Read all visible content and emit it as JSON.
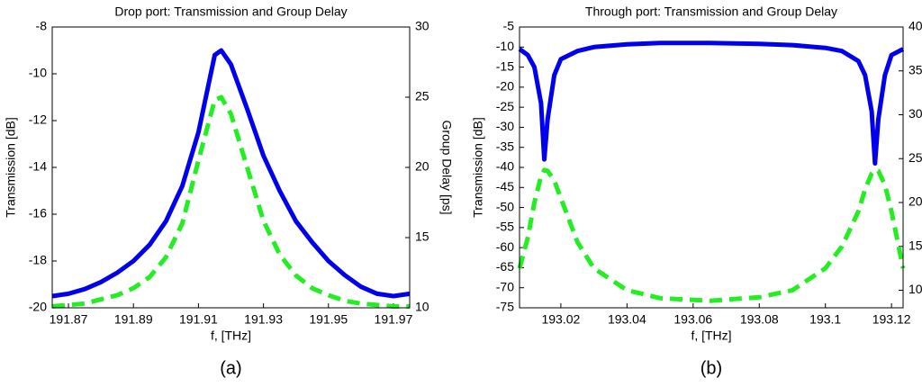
{
  "chart_data": [
    {
      "type": "line",
      "title": "Drop port: Transmission and Group Delay",
      "xlabel": "f, [THz]",
      "ylabel": "Transmission [dB]",
      "y2label": "Group Delay [ps]",
      "panel_label": "(a)",
      "x": [
        191.865,
        191.87,
        191.875,
        191.88,
        191.885,
        191.89,
        191.895,
        191.9,
        191.905,
        191.91,
        191.915,
        191.917,
        191.92,
        191.925,
        191.93,
        191.935,
        191.94,
        191.945,
        191.95,
        191.955,
        191.96,
        191.965,
        191.97,
        191.975
      ],
      "xlim": [
        191.865,
        191.975
      ],
      "xticks": [
        191.87,
        191.89,
        191.91,
        191.93,
        191.95,
        191.97
      ],
      "ylim": [
        -20,
        -8
      ],
      "yticks": [
        -20,
        -18,
        -16,
        -14,
        -12,
        -10,
        -8
      ],
      "y2lim": [
        10,
        30
      ],
      "y2ticks": [
        10,
        15,
        20,
        25,
        30
      ],
      "series": [
        {
          "color": "#0000ee",
          "style": "solid",
          "values": [
            -19.5,
            -19.4,
            -19.2,
            -18.9,
            -18.5,
            -18.0,
            -17.3,
            -16.3,
            -14.8,
            -12.5,
            -9.2,
            -9.0,
            -9.6,
            -11.5,
            -13.5,
            -15.0,
            -16.3,
            -17.2,
            -18.0,
            -18.6,
            -19.1,
            -19.4,
            -19.5,
            -19.4
          ]
        },
        {
          "color": "#22ee22",
          "style": "dashed",
          "axis": "y2",
          "values": [
            10.1,
            10.2,
            10.3,
            10.6,
            10.9,
            11.4,
            12.2,
            13.6,
            16.0,
            20.5,
            24.8,
            25.0,
            23.8,
            20.0,
            16.2,
            13.8,
            12.3,
            11.4,
            10.9,
            10.5,
            10.3,
            10.2,
            10.1,
            10.1
          ]
        }
      ]
    },
    {
      "type": "line",
      "title": "Through port: Transmission and Group Delay",
      "xlabel": "f, [THz]",
      "ylabel": "Transmission [dB]",
      "y2label": "Group Delay [ps]",
      "panel_label": "(b)",
      "x": [
        193.0075,
        193.01,
        193.012,
        193.014,
        193.015,
        193.016,
        193.018,
        193.02,
        193.025,
        193.03,
        193.04,
        193.05,
        193.065,
        193.08,
        193.09,
        193.1,
        193.105,
        193.11,
        193.112,
        193.114,
        193.115,
        193.116,
        193.118,
        193.12,
        193.1235
      ],
      "xlim": [
        193.0075,
        193.1235
      ],
      "xticks": [
        193.02,
        193.04,
        193.06,
        193.08,
        193.1,
        193.12
      ],
      "ylim": [
        -75,
        -5
      ],
      "yticks": [
        -75,
        -70,
        -65,
        -60,
        -55,
        -50,
        -45,
        -40,
        -35,
        -30,
        -25,
        -20,
        -15,
        -10,
        -5
      ],
      "y2lim": [
        8,
        40
      ],
      "y2ticks": [
        10,
        15,
        20,
        25,
        30,
        35,
        40
      ],
      "series": [
        {
          "color": "#0000ee",
          "style": "solid",
          "values": [
            -10.5,
            -12,
            -15,
            -24,
            -38,
            -28,
            -17,
            -13,
            -11,
            -10,
            -9.3,
            -9,
            -9,
            -9.2,
            -9.5,
            -10.2,
            -11,
            -13.5,
            -17,
            -26,
            -39,
            -28,
            -17,
            -12,
            -10.5
          ]
        },
        {
          "color": "#22ee22",
          "style": "dashed",
          "axis": "y2",
          "values": [
            12.5,
            16,
            20,
            23,
            23.7,
            23.6,
            22.5,
            20.5,
            15.5,
            12.5,
            10,
            9.1,
            8.8,
            9.2,
            10,
            12.5,
            15,
            19,
            21.5,
            23.3,
            23.7,
            23.6,
            22,
            19,
            12.5
          ]
        }
      ]
    }
  ]
}
